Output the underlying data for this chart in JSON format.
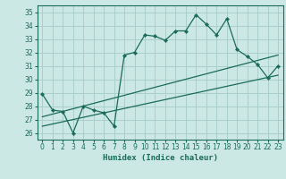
{
  "xlabel": "Humidex (Indice chaleur)",
  "bg_color": "#cce8e4",
  "grid_color": "#aacfca",
  "line_color": "#1a6b5a",
  "xlim": [
    -0.5,
    23.5
  ],
  "ylim": [
    25.5,
    35.5
  ],
  "xticks": [
    0,
    1,
    2,
    3,
    4,
    5,
    6,
    7,
    8,
    9,
    10,
    11,
    12,
    13,
    14,
    15,
    16,
    17,
    18,
    19,
    20,
    21,
    22,
    23
  ],
  "yticks": [
    26,
    27,
    28,
    29,
    30,
    31,
    32,
    33,
    34,
    35
  ],
  "line1_x": [
    0,
    1,
    2,
    3,
    4,
    5,
    6,
    7,
    8,
    9,
    10,
    11,
    12,
    13,
    14,
    15,
    16,
    17,
    18,
    19,
    20,
    21,
    22,
    23
  ],
  "line1_y": [
    28.9,
    27.7,
    27.6,
    26.0,
    28.0,
    27.7,
    27.5,
    26.5,
    31.8,
    32.0,
    33.3,
    33.2,
    32.9,
    33.6,
    33.6,
    34.8,
    34.1,
    33.3,
    34.5,
    32.2,
    31.7,
    31.1,
    30.1,
    31.0
  ],
  "line2_x": [
    0,
    23
  ],
  "line2_y": [
    27.2,
    31.8
  ],
  "line3_x": [
    0,
    23
  ],
  "line3_y": [
    26.5,
    30.3
  ]
}
